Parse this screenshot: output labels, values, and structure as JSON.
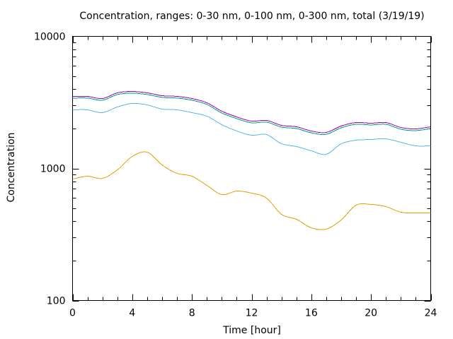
{
  "chart_data": {
    "type": "line",
    "title": "Concentration, ranges: 0-30 nm, 0-100 nm, 0-300 nm, total (3/19/19)",
    "xlabel": "Time [hour]",
    "ylabel": "Concentration",
    "xlim": [
      0,
      24
    ],
    "ylim": [
      100,
      10000
    ],
    "yscale": "log",
    "grid": false,
    "legend": "none",
    "x_ticks": [
      0,
      4,
      8,
      12,
      16,
      20,
      24
    ],
    "x_tick_labels": [
      "0",
      "4",
      "8",
      "12",
      "16",
      "20",
      "24"
    ],
    "y_ticks": [
      100,
      1000,
      10000
    ],
    "y_tick_labels": [
      "100",
      "1000",
      "10000"
    ],
    "x": [
      0,
      1,
      2,
      3,
      4,
      5,
      6,
      7,
      8,
      9,
      10,
      11,
      12,
      13,
      14,
      15,
      16,
      17,
      18,
      19,
      20,
      21,
      22,
      23,
      24
    ],
    "series": [
      {
        "name": "total",
        "color": "#9400d3",
        "values": [
          3512,
          3512,
          3384,
          3735,
          3827,
          3735,
          3555,
          3512,
          3384,
          3144,
          2712,
          2457,
          2282,
          2310,
          2120,
          2068,
          1920,
          1874,
          2094,
          2227,
          2199,
          2227,
          2043,
          1993,
          2068
        ]
      },
      {
        "name": "0-300 nm",
        "color": "#009e73",
        "values": [
          3410,
          3410,
          3285,
          3625,
          3715,
          3625,
          3450,
          3410,
          3285,
          3050,
          2630,
          2385,
          2215,
          2240,
          2055,
          2005,
          1860,
          1815,
          2030,
          2160,
          2135,
          2160,
          1980,
          1935,
          2005
        ]
      },
      {
        "name": "0-100 nm",
        "color": "#56b4e9",
        "values": [
          2779,
          2779,
          2645,
          2919,
          3105,
          3030,
          2813,
          2779,
          2645,
          2486,
          2146,
          1920,
          1784,
          1806,
          1539,
          1465,
          1360,
          1279,
          1539,
          1636,
          1656,
          1676,
          1577,
          1483,
          1483
        ]
      },
      {
        "name": "0-30 nm",
        "color": "#e69f00",
        "values": [
          831,
          873,
          841,
          976,
          1233,
          1327,
          1063,
          918,
          873,
          744,
          634,
          674,
          650,
          596,
          449,
          412,
          355,
          347,
          407,
          527,
          534,
          514,
          466,
          460,
          460
        ]
      }
    ]
  }
}
